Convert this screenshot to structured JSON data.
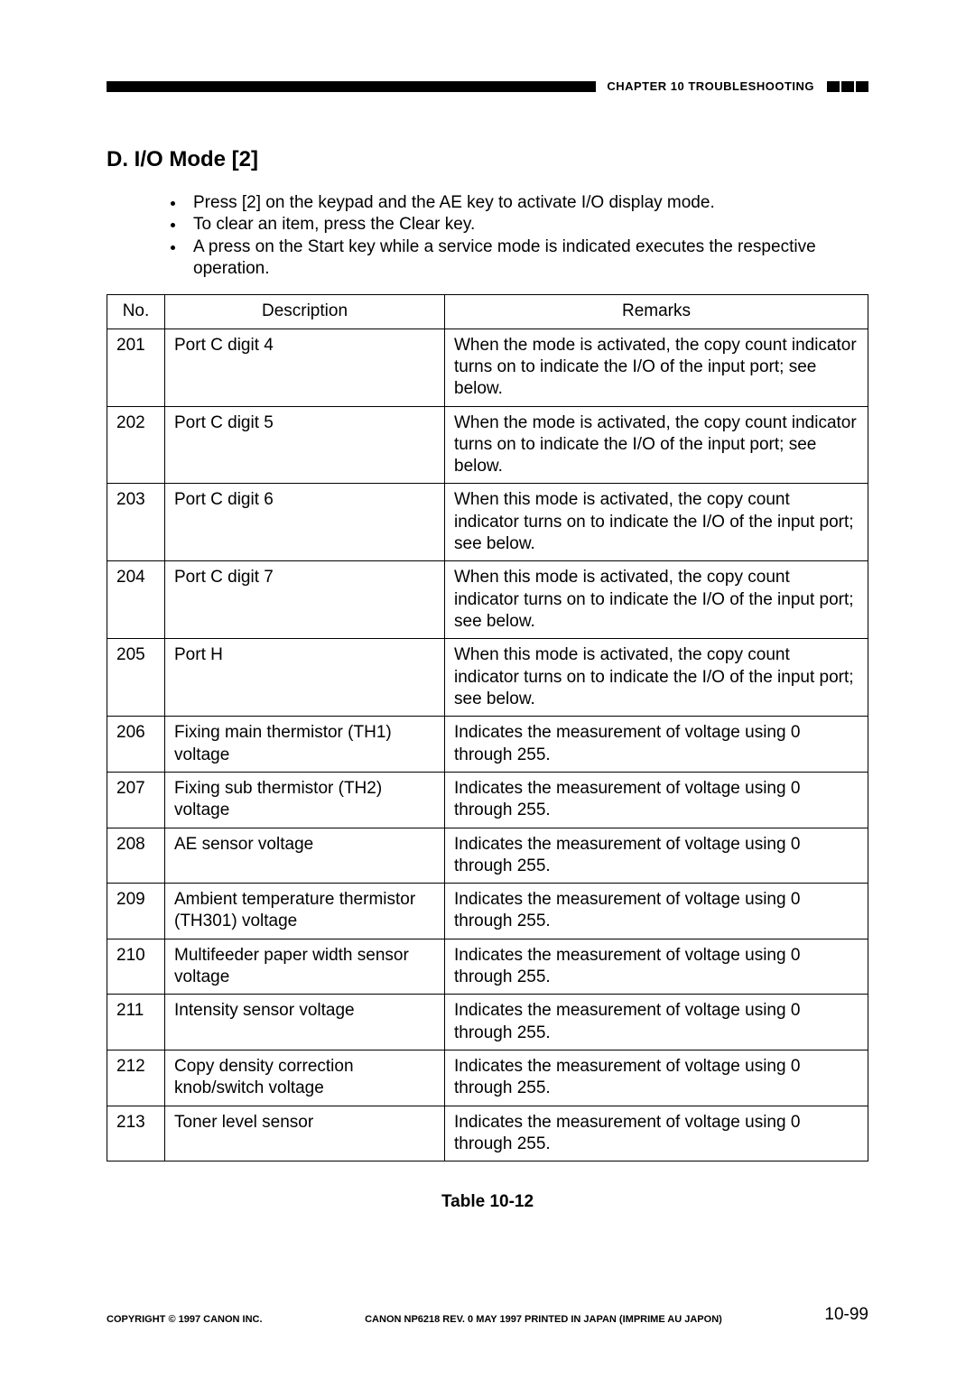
{
  "header": {
    "chapter_label": "CHAPTER 10  TROUBLESHOOTING"
  },
  "section": {
    "heading": "D. I/O Mode [2]"
  },
  "bullets": [
    "Press [2] on the keypad and the AE key to activate I/O display mode.",
    "To clear an item, press the Clear key.",
    "A press on the Start key while a service mode is indicated executes the respective operation."
  ],
  "table": {
    "columns": [
      "No.",
      "Description",
      "Remarks"
    ],
    "rows": [
      {
        "no": "201",
        "desc": "Port C digit 4",
        "remarks": "When the mode is activated, the copy count indicator turns on to indicate the I/O of the input port; see below."
      },
      {
        "no": "202",
        "desc": "Port C digit 5",
        "remarks": "When the mode is activated, the copy count indicator turns on to indicate the I/O of the input port; see below."
      },
      {
        "no": "203",
        "desc": "Port C digit 6",
        "remarks": "When this mode is activated, the copy count indicator turns on to indicate the I/O of the input port; see below."
      },
      {
        "no": "204",
        "desc": "Port C digit 7",
        "remarks": "When this mode is activated, the copy count indicator turns on to indicate the I/O of the input port; see below."
      },
      {
        "no": "205",
        "desc": "Port H",
        "remarks": "When this mode is activated, the copy count indicator turns on to indicate the I/O of the input port; see below."
      },
      {
        "no": "206",
        "desc": "Fixing main thermistor (TH1) voltage",
        "remarks": "Indicates the measurement of voltage using 0 through 255."
      },
      {
        "no": "207",
        "desc": "Fixing sub thermistor (TH2) voltage",
        "remarks": "Indicates the measurement of voltage using 0 through 255."
      },
      {
        "no": "208",
        "desc": "AE sensor voltage",
        "remarks": "Indicates the measurement of voltage using 0 through 255."
      },
      {
        "no": "209",
        "desc": "Ambient temperature thermistor (TH301) voltage",
        "remarks": "Indicates the measurement of voltage using 0 through 255."
      },
      {
        "no": "210",
        "desc": "Multifeeder paper width sensor voltage",
        "remarks": "Indicates the measurement of voltage using 0 through 255."
      },
      {
        "no": "211",
        "desc": "Intensity sensor voltage",
        "remarks": "Indicates the measurement of voltage using 0 through 255."
      },
      {
        "no": "212",
        "desc": "Copy density correction knob/switch voltage",
        "remarks": "Indicates the measurement of voltage using 0 through 255."
      },
      {
        "no": "213",
        "desc": "Toner level sensor",
        "remarks": "Indicates the measurement of voltage using 0 through 255."
      }
    ],
    "caption": "Table 10-12"
  },
  "footer": {
    "left": "COPYRIGHT © 1997 CANON INC.",
    "center": "CANON NP6218 REV. 0 MAY 1997 PRINTED IN JAPAN (IMPRIME AU JAPON)",
    "page_number": "10-99"
  }
}
